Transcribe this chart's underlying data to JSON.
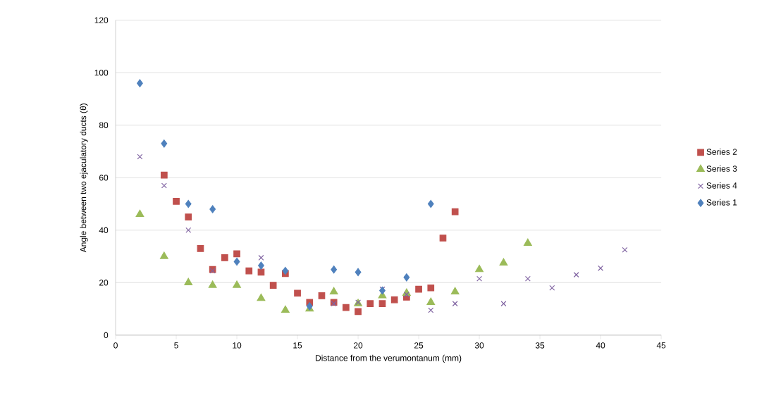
{
  "chart_data": {
    "type": "scatter",
    "xlabel": "Distance from the verumontanum (mm)",
    "ylabel": "Angle between two ejaculatory ducts (θ)",
    "xlim": [
      0,
      45
    ],
    "xticks": [
      0,
      5,
      10,
      15,
      20,
      25,
      30,
      35,
      40,
      45
    ],
    "ylim": [
      0,
      120
    ],
    "yticks": [
      0,
      20,
      40,
      60,
      80,
      100,
      120
    ],
    "grid": "y",
    "legend": "right",
    "series": [
      {
        "name": "Series 2",
        "color": "#c0504d",
        "marker": "square",
        "x": [
          4,
          5,
          6,
          7,
          8,
          9,
          10,
          11,
          12,
          13,
          14,
          15,
          16,
          17,
          18,
          19,
          20,
          21,
          22,
          23,
          24,
          25,
          26,
          27,
          28
        ],
        "values": [
          61,
          51,
          45,
          33,
          25,
          29.5,
          31,
          24.5,
          24,
          19,
          23.5,
          16,
          12.5,
          15,
          12.5,
          10.5,
          9,
          12,
          12,
          13.5,
          14.5,
          17.5,
          18,
          37,
          47
        ]
      },
      {
        "name": "Series 3",
        "color": "#9bbb59",
        "marker": "triangle",
        "x": [
          2,
          4,
          6,
          8,
          10,
          12,
          14,
          16,
          18,
          20,
          22,
          24,
          26,
          28,
          30,
          32,
          34
        ],
        "values": [
          46,
          30,
          20,
          19,
          19,
          14,
          9.5,
          10,
          16.5,
          12,
          15,
          16,
          12.5,
          16.5,
          25,
          27.5,
          35
        ]
      },
      {
        "name": "Series 4",
        "color": "#8064a2",
        "marker": "cross",
        "x": [
          2,
          4,
          6,
          8,
          12,
          18,
          20,
          22,
          24,
          26,
          28,
          30,
          32,
          34,
          36,
          38,
          40,
          42
        ],
        "values": [
          68,
          57,
          40,
          24.5,
          29.5,
          12,
          12.5,
          17.5,
          15.5,
          9.5,
          12,
          21.5,
          12,
          21.5,
          18,
          23,
          25.5,
          32.5
        ]
      },
      {
        "name": "Series 1",
        "color": "#4f81bd",
        "marker": "diamond",
        "x": [
          2,
          4,
          6,
          8,
          10,
          12,
          14,
          16,
          18,
          20,
          22,
          24,
          26
        ],
        "values": [
          96,
          73,
          50,
          48,
          28,
          26.5,
          24.5,
          11,
          25,
          24,
          17,
          22,
          50
        ]
      }
    ]
  }
}
